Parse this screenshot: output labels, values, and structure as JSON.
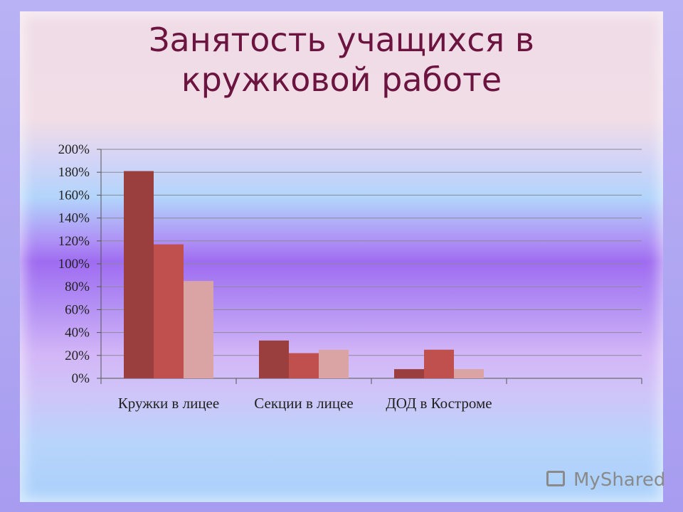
{
  "title_line1": "Занятость учащихся в",
  "title_line2": "кружковой работе",
  "logo_text": "MyShared",
  "chart_data": {
    "type": "bar",
    "categories": [
      "Кружки в лицее",
      "Секции в лицее",
      "ДОД в Костроме",
      ""
    ],
    "series": [
      {
        "values": [
          181,
          33,
          8,
          null
        ],
        "color": "#9a3f3e"
      },
      {
        "values": [
          117,
          22,
          25,
          null
        ],
        "color": "#c0504d"
      },
      {
        "values": [
          85,
          25,
          8,
          null
        ],
        "color": "#dba4a4"
      }
    ],
    "yticks": [
      "0%",
      "20%",
      "40%",
      "60%",
      "80%",
      "100%",
      "120%",
      "140%",
      "160%",
      "180%",
      "200%"
    ],
    "ylim": [
      0,
      200
    ],
    "grid": true,
    "legend": "none"
  }
}
